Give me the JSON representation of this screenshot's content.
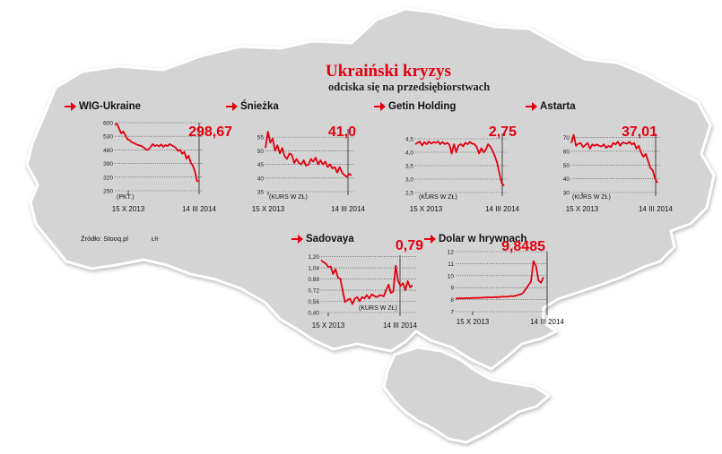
{
  "header": {
    "title": "Ukraiński kryzys",
    "subtitle": "odciska się na przedsiębiorstwach"
  },
  "source": "Źródło: Stooq.pl",
  "author": "ŁR",
  "colors": {
    "line": "#e3000f",
    "map": "#d4d4d4",
    "map_stroke": "#ffffff"
  },
  "chart_data": [
    {
      "type": "line",
      "title": "WIG-Ukraine",
      "last_value": "298,67",
      "unit": "(PKT.)",
      "xticks": [
        "15 X 2013",
        "14 III 2014"
      ],
      "yticks": [
        "600",
        "530",
        "460",
        "390",
        "320",
        "250"
      ],
      "ylim": [
        250,
        600
      ],
      "y": [
        590,
        595,
        570,
        545,
        555,
        535,
        515,
        510,
        500,
        495,
        490,
        485,
        482,
        478,
        470,
        460,
        462,
        475,
        490,
        480,
        485,
        478,
        488,
        475,
        485,
        480,
        490,
        484,
        478,
        470,
        455,
        460,
        440,
        450,
        415,
        430,
        395,
        380,
        350,
        300,
        298.67
      ]
    },
    {
      "type": "line",
      "title": "Śnieżka",
      "last_value": "41,0",
      "unit": "(KURS W ZŁ)",
      "xticks": [
        "15 X 2013",
        "14 III 2014"
      ],
      "yticks": [
        "55",
        "50",
        "45",
        "40",
        "35"
      ],
      "ylim": [
        35,
        58
      ],
      "y": [
        51,
        57,
        53,
        54.5,
        50,
        52,
        49,
        51,
        48,
        47,
        49,
        48.5,
        45.5,
        47,
        45.5,
        45,
        46.5,
        44.5,
        45,
        47,
        46,
        47.5,
        45,
        46.5,
        45,
        46,
        44,
        45,
        43.5,
        44,
        42,
        44,
        42,
        41,
        40.5,
        41.5,
        41.0
      ]
    },
    {
      "type": "line",
      "title": "Getin Holding",
      "last_value": "2,75",
      "unit": "(KURS W ZŁ)",
      "xticks": [
        "15 X 2013",
        "14 III 2014"
      ],
      "yticks": [
        "4,5",
        "4,0",
        "3,5",
        "3,0",
        "2,5"
      ],
      "ylim": [
        2.5,
        4.7
      ],
      "y": [
        4.3,
        4.35,
        4.4,
        4.25,
        4.38,
        4.3,
        4.4,
        4.32,
        4.38,
        4.35,
        4.4,
        4.3,
        4.38,
        4.3,
        4.35,
        4.28,
        3.95,
        4.3,
        4.0,
        4.25,
        4.3,
        4.22,
        4.35,
        4.3,
        4.38,
        4.32,
        4.3,
        4.2,
        3.95,
        4.15,
        4.0,
        4.1,
        4.3,
        4.2,
        4.05,
        3.85,
        3.6,
        3.2,
        2.85,
        2.75
      ]
    },
    {
      "type": "line",
      "title": "Astarta",
      "last_value": "37,01",
      "unit": "(KURS W ZŁ)",
      "xticks": [
        "15 X 2013",
        "14 III 2014"
      ],
      "yticks": [
        "70",
        "60",
        "50",
        "40",
        "30"
      ],
      "ylim": [
        30,
        73
      ],
      "y": [
        66,
        72,
        64,
        65.5,
        66,
        63,
        64.5,
        66,
        62,
        65,
        64,
        65,
        64,
        63.5,
        65,
        62.5,
        64,
        63,
        66,
        65,
        67,
        64,
        66.5,
        66,
        65.5,
        67,
        65,
        66,
        62,
        64,
        59,
        56,
        58,
        53,
        48,
        46,
        40,
        37.01
      ]
    },
    {
      "type": "line",
      "title": "Sadovaya",
      "last_value": "0,79",
      "unit": "(KURS W ZŁ)",
      "xticks": [
        "15 X 2013",
        "14 III 2014"
      ],
      "yticks": [
        "1,20",
        "1,04",
        "0,88",
        "0,72",
        "0,56",
        "0,40"
      ],
      "ylim": [
        0.4,
        1.22
      ],
      "y": [
        1.15,
        1.12,
        1.1,
        1.05,
        1.06,
        0.95,
        1.02,
        0.9,
        0.88,
        0.7,
        0.55,
        0.58,
        0.6,
        0.52,
        0.6,
        0.62,
        0.56,
        0.62,
        0.6,
        0.65,
        0.6,
        0.66,
        0.64,
        0.62,
        0.64,
        0.65,
        0.63,
        0.72,
        0.8,
        0.68,
        0.7,
        1.07,
        0.85,
        0.78,
        0.82,
        0.72,
        0.85,
        0.76,
        0.79
      ]
    },
    {
      "type": "line",
      "title": "Dolar w hrywnach",
      "last_value": "9,8485",
      "unit": "",
      "xticks": [
        "15 X 2013",
        "14 III 2014"
      ],
      "yticks": [
        "12",
        "11",
        "10",
        "9",
        "8",
        "7"
      ],
      "ylim": [
        7,
        12
      ],
      "y": [
        8.1,
        8.1,
        8.12,
        8.1,
        8.12,
        8.13,
        8.12,
        8.14,
        8.15,
        8.14,
        8.16,
        8.17,
        8.18,
        8.2,
        8.19,
        8.2,
        8.22,
        8.21,
        8.23,
        8.25,
        8.24,
        8.26,
        8.3,
        8.28,
        8.32,
        8.4,
        8.45,
        8.6,
        8.9,
        9.2,
        9.5,
        11.2,
        10.8,
        9.6,
        9.4,
        9.85
      ]
    }
  ]
}
